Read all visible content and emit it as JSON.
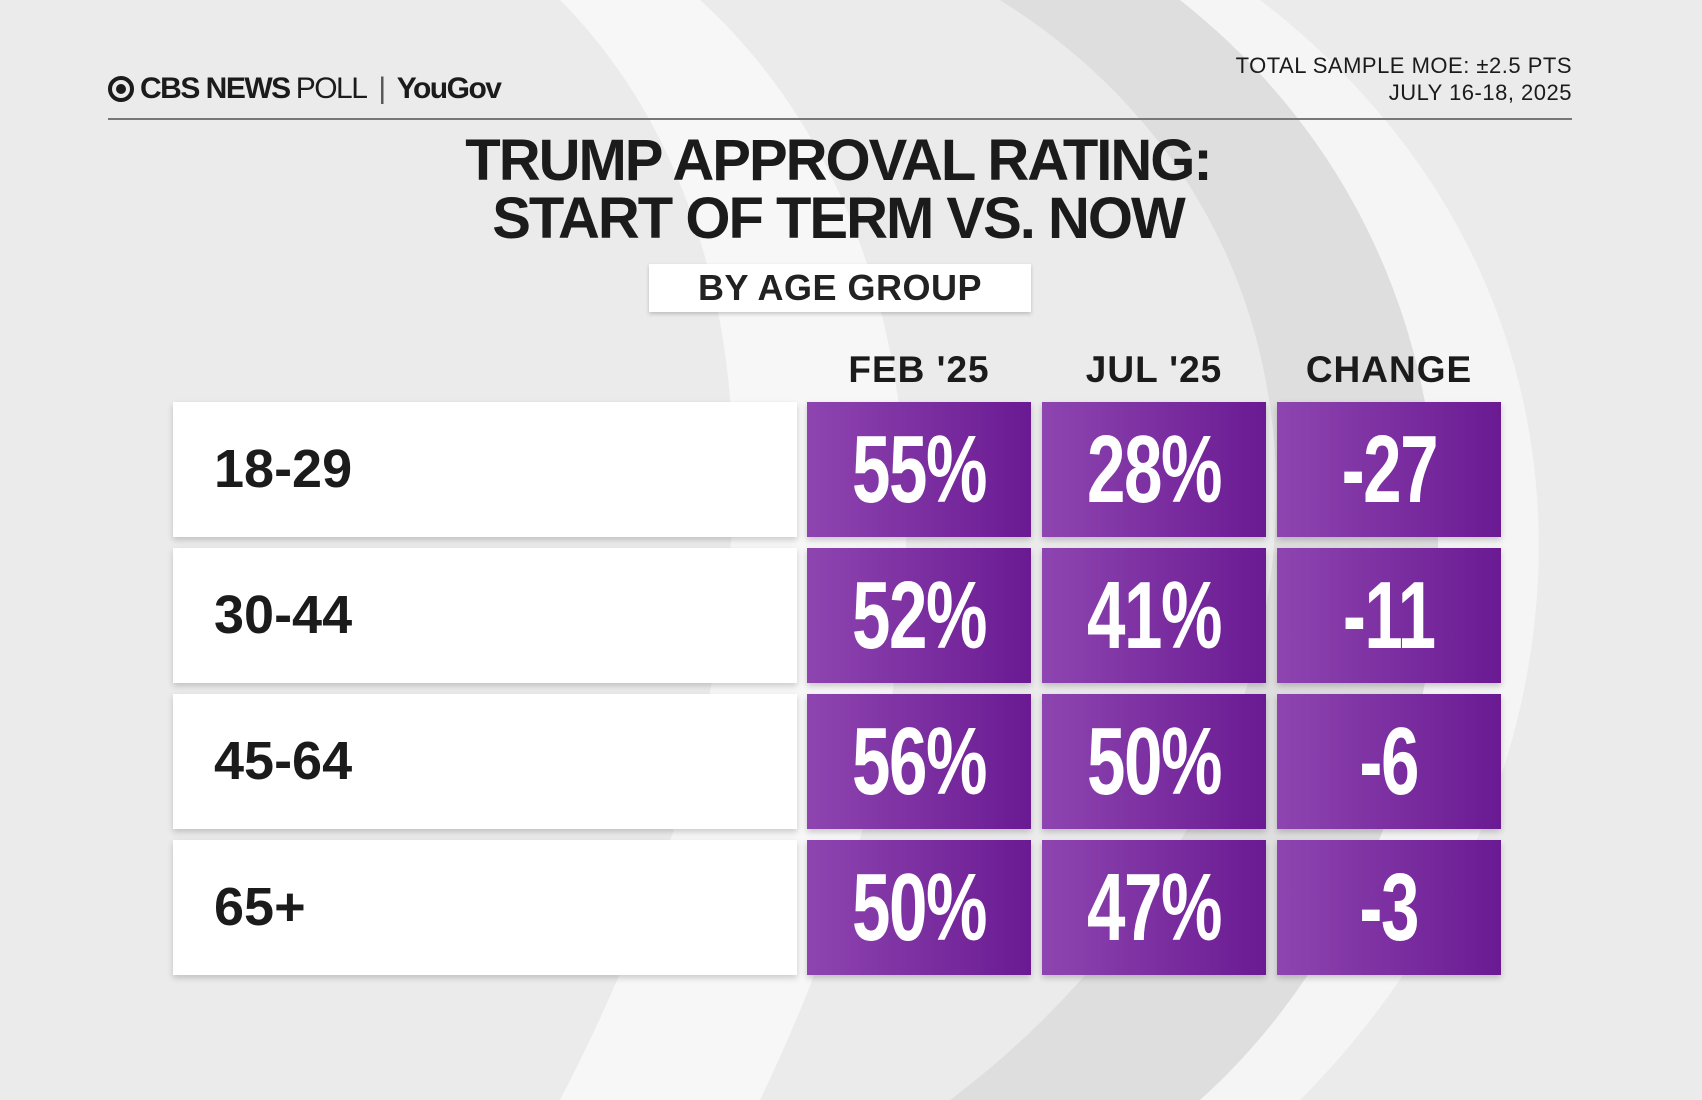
{
  "header": {
    "logo_brand": "CBS NEWS",
    "logo_poll": "POLL",
    "logo_partner": "YouGov",
    "moe": "TOTAL SAMPLE MOE: ±2.5 PTS",
    "dates": "JULY 16-18, 2025"
  },
  "colors": {
    "cell_light": "#8e45b0",
    "cell_dark": "#6a1a92"
  },
  "chart_data": {
    "type": "table",
    "title_line1": "TRUMP APPROVAL RATING:",
    "title_line2": "START OF TERM VS. NOW",
    "subtitle": "BY AGE GROUP",
    "columns": [
      "FEB '25",
      "JUL '25",
      "CHANGE"
    ],
    "rows": [
      {
        "label": "18-29",
        "values": [
          "55%",
          "28%",
          "-27"
        ]
      },
      {
        "label": "30-44",
        "values": [
          "52%",
          "41%",
          "-11"
        ]
      },
      {
        "label": "45-64",
        "values": [
          "56%",
          "50%",
          "-6"
        ]
      },
      {
        "label": "65+",
        "values": [
          "50%",
          "47%",
          "-3"
        ]
      }
    ]
  }
}
